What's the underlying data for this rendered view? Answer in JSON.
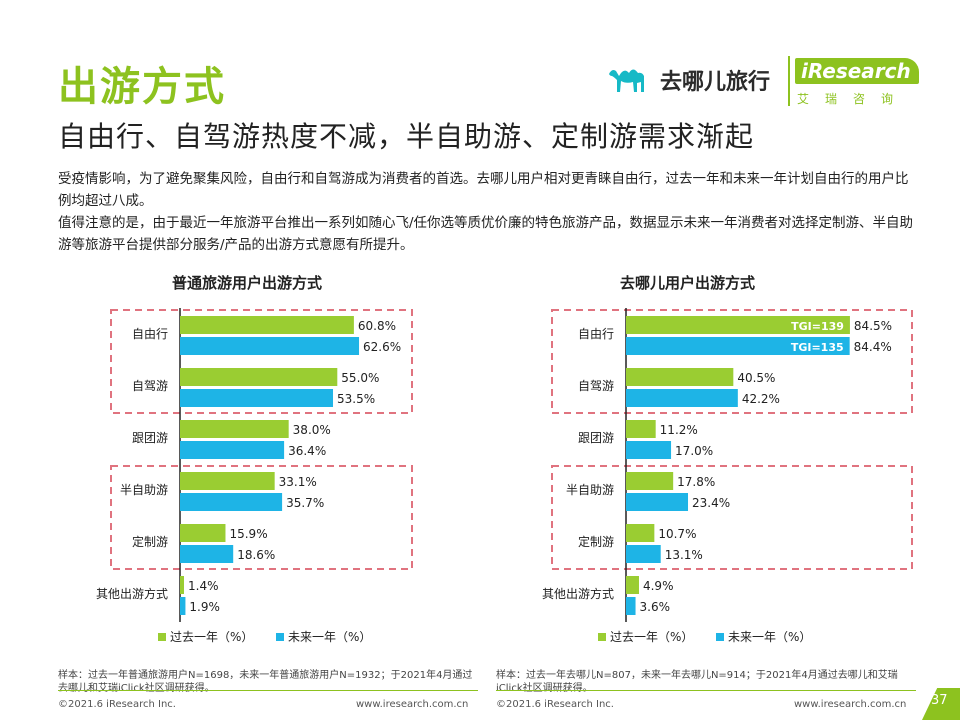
{
  "title": "出游方式",
  "subtitle": "自由行、自驾游热度不减，半自助游、定制游需求渐起",
  "logos": {
    "qunar": "去哪儿旅行",
    "iresearch": "iResearch",
    "iresearch_cn": "艾瑞咨询"
  },
  "description": [
    "受疫情影响，为了避免聚集风险，自由行和自驾游成为消费者的首选。去哪儿用户相对更青睐自由行，过去一年和未来一年计划自由行的用户比例均超过八成。",
    "值得注意的是，由于最近一年旅游平台推出一系列如随心飞/任你选等质优价廉的特色旅游产品，数据显示未来一年消费者对选择定制游、半自助游等旅游平台提供部分服务/产品的出游方式意愿有所提升。"
  ],
  "colors": {
    "accent": "#8dc21f",
    "past": "#9acd32",
    "future": "#1eb4e6",
    "highlight": "#e0737f"
  },
  "chart_data": [
    {
      "type": "bar",
      "orientation": "horizontal",
      "title": "普通旅游用户出游方式",
      "categories": [
        "自由行",
        "自驾游",
        "跟团游",
        "半自助游",
        "定制游",
        "其他出游方式"
      ],
      "series": [
        {
          "name": "过去一年（%）",
          "values": [
            60.8,
            55.0,
            38.0,
            33.1,
            15.9,
            1.4
          ]
        },
        {
          "name": "未来一年（%）",
          "values": [
            62.6,
            53.5,
            36.4,
            35.7,
            18.6,
            1.9
          ]
        }
      ],
      "labels": [
        [
          "60.8%",
          "55.0%",
          "38.0%",
          "33.1%",
          "15.9%",
          "1.4%"
        ],
        [
          "62.6%",
          "53.5%",
          "36.4%",
          "35.7%",
          "18.6%",
          "1.9%"
        ]
      ],
      "highlight_groups": [
        [
          0,
          1
        ],
        [
          3,
          4
        ]
      ],
      "xlim": [
        0,
        100
      ],
      "note": "样本：过去一年普通旅游用户N=1698，未来一年普通旅游用户N=1932；于2021年4月通过去哪儿和艾瑞iClick社区调研获得。"
    },
    {
      "type": "bar",
      "orientation": "horizontal",
      "title": "去哪儿用户出游方式",
      "categories": [
        "自由行",
        "自驾游",
        "跟团游",
        "半自助游",
        "定制游",
        "其他出游方式"
      ],
      "series": [
        {
          "name": "过去一年（%）",
          "values": [
            84.5,
            40.5,
            11.2,
            17.8,
            10.7,
            4.9
          ]
        },
        {
          "name": "未来一年（%）",
          "values": [
            84.4,
            42.2,
            17.0,
            23.4,
            13.1,
            3.6
          ]
        }
      ],
      "labels": [
        [
          "84.5%",
          "40.5%",
          "11.2%",
          "17.8%",
          "10.7%",
          "4.9%"
        ],
        [
          "84.4%",
          "42.2%",
          "17.0%",
          "23.4%",
          "13.1%",
          "3.6%"
        ]
      ],
      "tgi": [
        "TGI=139",
        "TGI=135"
      ],
      "highlight_groups": [
        [
          0,
          1
        ],
        [
          3,
          4
        ]
      ],
      "xlim": [
        0,
        100
      ],
      "note": "样本：过去一年去哪儿N=807，未来一年去哪儿N=914；于2021年4月通过去哪儿和艾瑞iClick社区调研获得。"
    }
  ],
  "footer": {
    "left_copyright": "©2021.6 iResearch Inc.",
    "left_url": "www.iresearch.com.cn",
    "right_copyright": "©2021.6 iResearch Inc.",
    "right_url": "www.iresearch.com.cn",
    "page": "37"
  }
}
